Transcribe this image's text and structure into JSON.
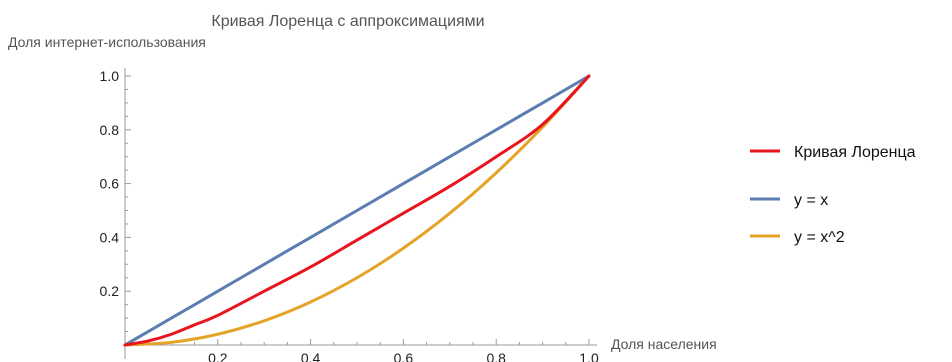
{
  "chart_data": {
    "type": "line",
    "title": "Кривая Лоренца с аппроксимациями",
    "xlabel": "Доля населения",
    "ylabel": "Доля интернет-использования",
    "xlim": [
      0,
      1
    ],
    "ylim": [
      0,
      1
    ],
    "x_ticks": [
      "0.2",
      "0.4",
      "0.6",
      "0.8",
      "1.0"
    ],
    "y_ticks": [
      "0.2",
      "0.4",
      "0.6",
      "0.8",
      "1.0"
    ],
    "grid": false,
    "legend_position": "right",
    "series": [
      {
        "name": "Кривая Лоренца",
        "color": "#e8141e",
        "x": [
          0,
          0.05,
          0.1,
          0.15,
          0.2,
          0.3,
          0.4,
          0.5,
          0.6,
          0.7,
          0.8,
          0.9,
          1.0
        ],
        "y": [
          0,
          0.015,
          0.04,
          0.075,
          0.11,
          0.2,
          0.29,
          0.39,
          0.49,
          0.59,
          0.7,
          0.82,
          1.0
        ]
      },
      {
        "name": "y = x",
        "color": "#5b7db1",
        "x": [
          0,
          0.1,
          0.2,
          0.3,
          0.4,
          0.5,
          0.6,
          0.7,
          0.8,
          0.9,
          1.0
        ],
        "y": [
          0,
          0.1,
          0.2,
          0.3,
          0.4,
          0.5,
          0.6,
          0.7,
          0.8,
          0.9,
          1.0
        ]
      },
      {
        "name": "y = x^2",
        "color": "#e3a428",
        "x": [
          0,
          0.1,
          0.2,
          0.3,
          0.4,
          0.5,
          0.6,
          0.7,
          0.8,
          0.9,
          1.0
        ],
        "y": [
          0,
          0.01,
          0.04,
          0.09,
          0.16,
          0.25,
          0.36,
          0.49,
          0.64,
          0.81,
          1.0
        ]
      }
    ]
  }
}
